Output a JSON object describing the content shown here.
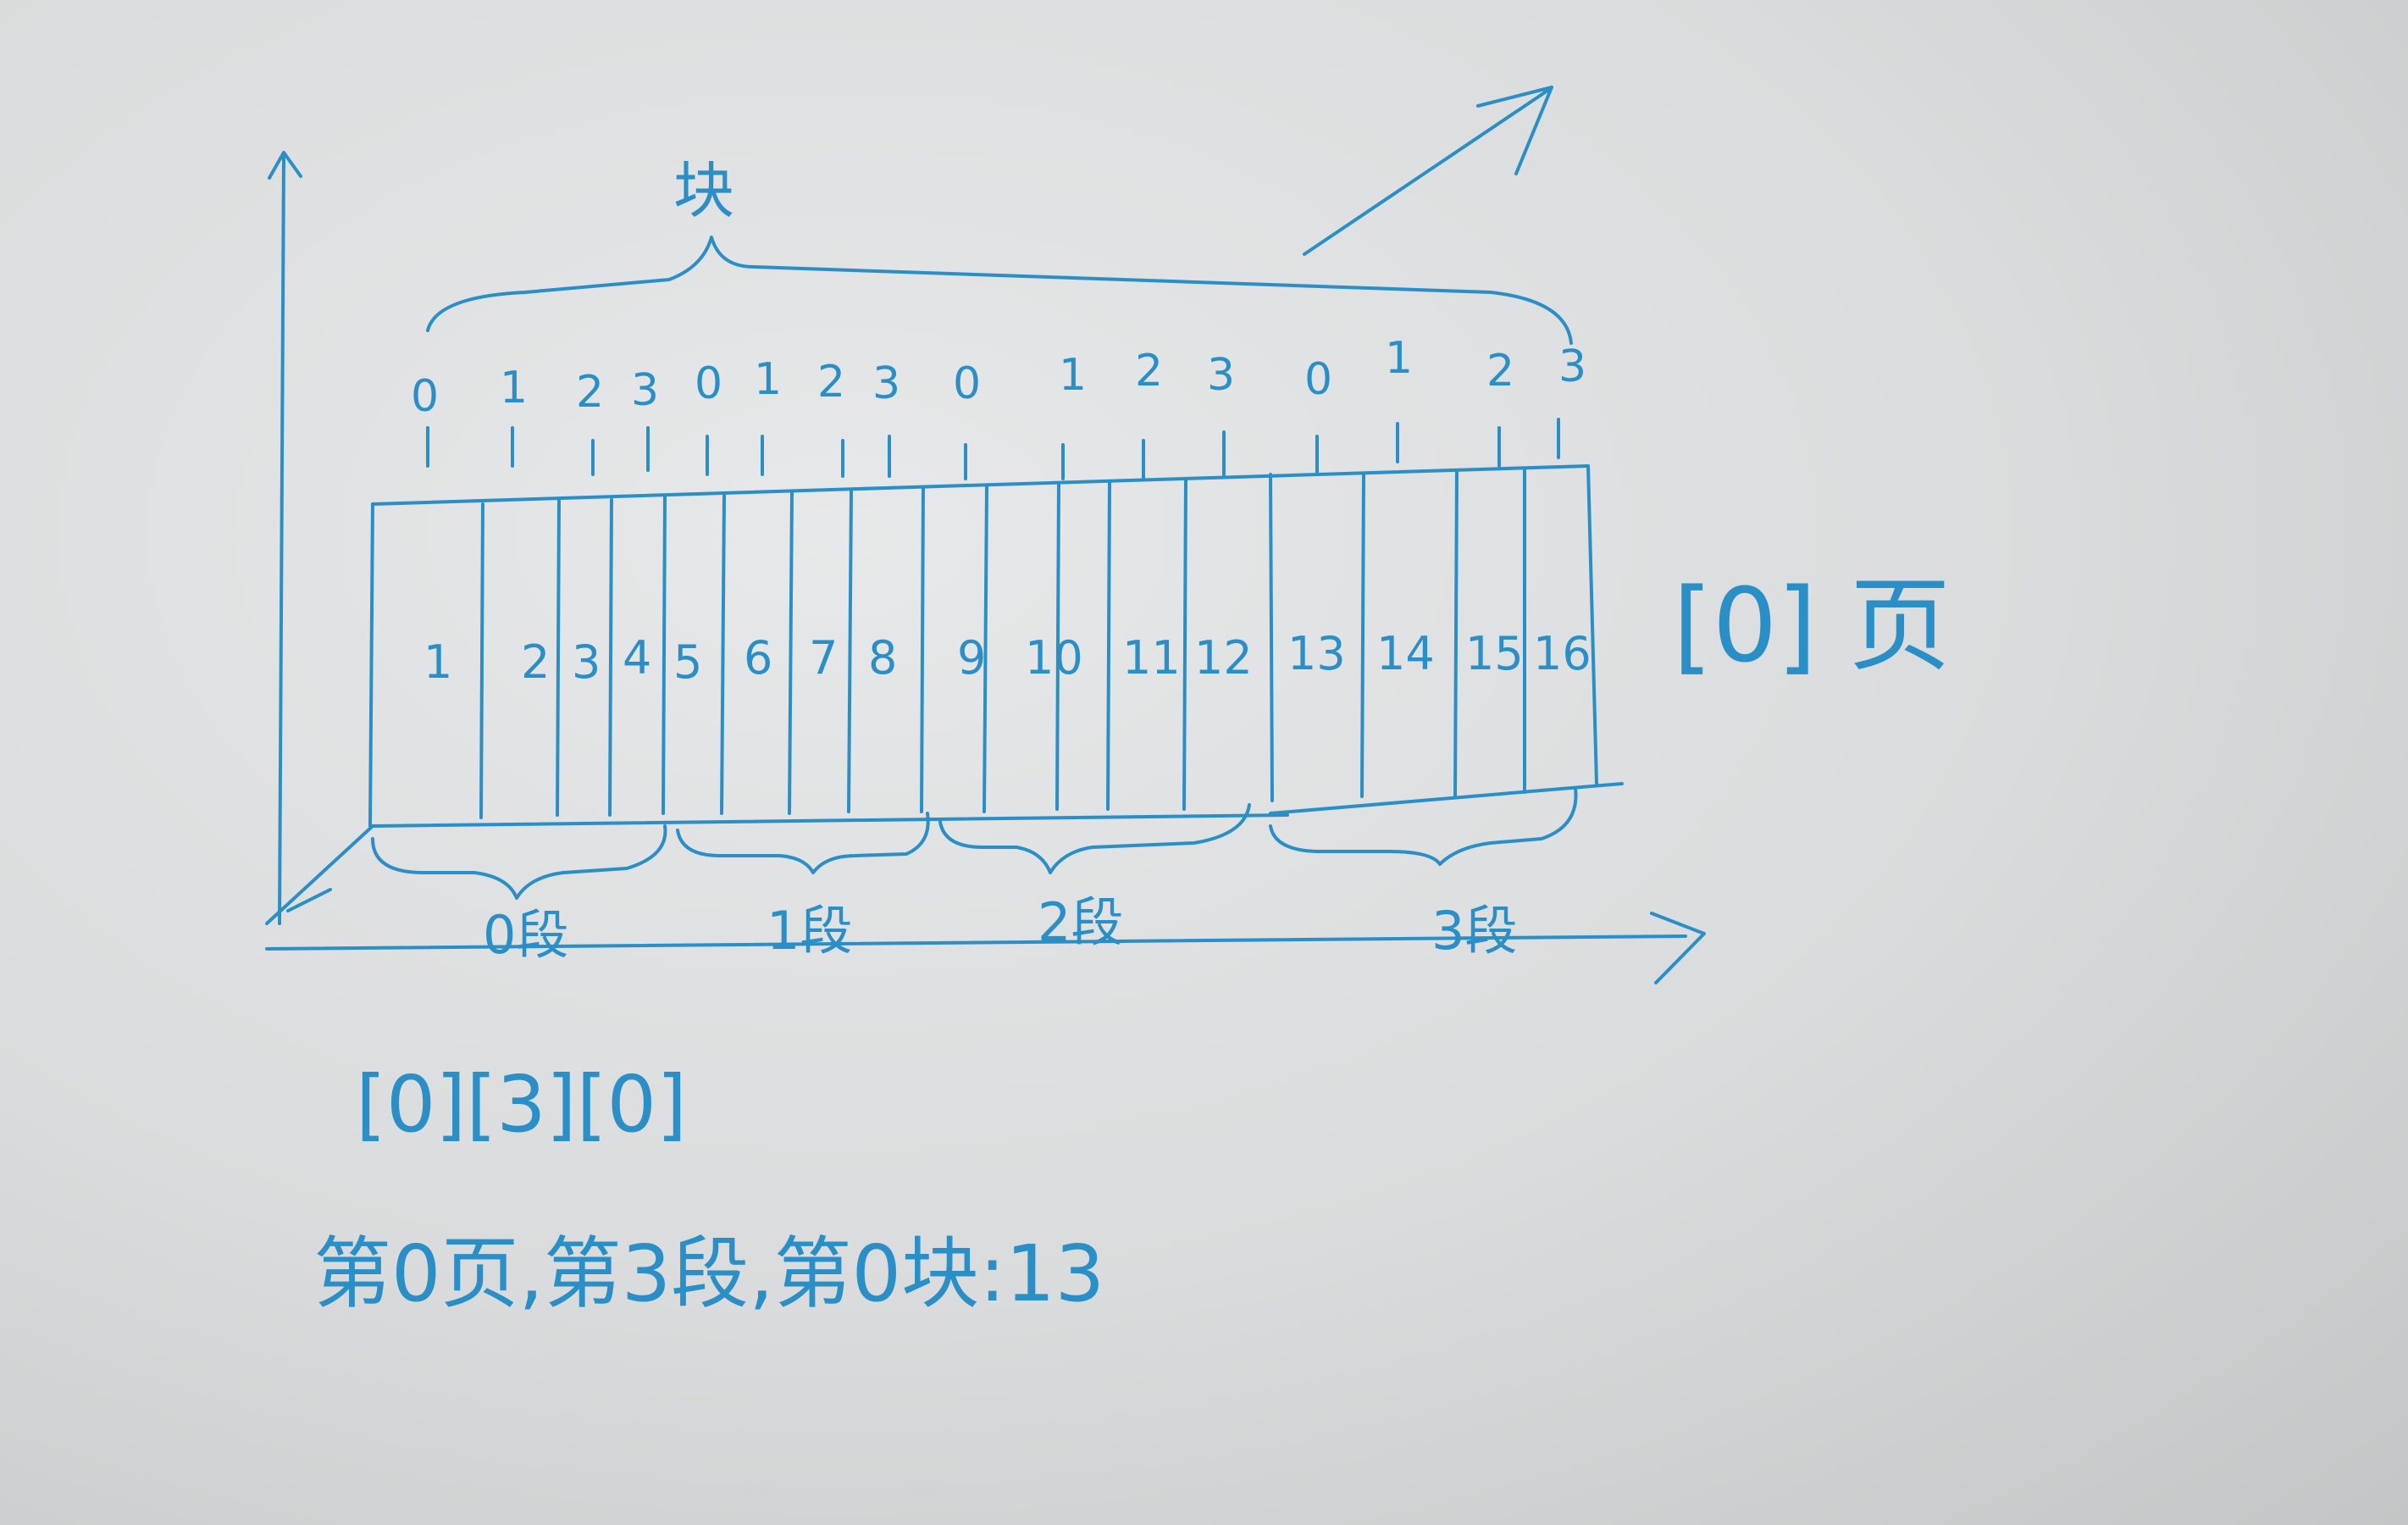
{
  "colors": {
    "ink": "#2a8fc6",
    "board": "#dcdedf"
  },
  "block_label": "块",
  "block_indices": [
    "0",
    "1",
    "2",
    "3",
    "0",
    "1",
    "2",
    "3",
    "0",
    "1",
    "2",
    "3",
    "0",
    "1",
    "2",
    "3"
  ],
  "cells": [
    "1",
    "2",
    "3",
    "4",
    "5",
    "6",
    "7",
    "8",
    "9",
    "10",
    "11",
    "12",
    "13",
    "14",
    "15",
    "16"
  ],
  "page_label": "[0] 页",
  "segments": [
    "0段",
    "1段",
    "2段",
    "3段"
  ],
  "address": "[0][3][0]",
  "explanation": "第0页,第3段,第0块:13"
}
